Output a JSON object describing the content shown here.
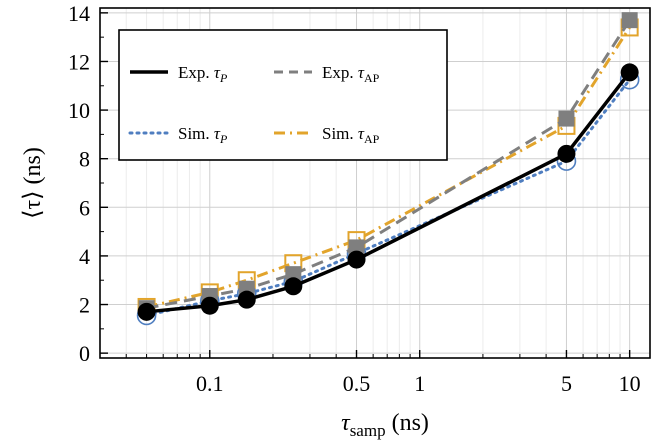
{
  "chart_data": {
    "type": "line",
    "x_scale": "log",
    "xlim": [
      0.03,
      12.5
    ],
    "ylim": [
      -0.2,
      14.2
    ],
    "grid": true,
    "legend_placement": "top-left",
    "x_ticks": [
      {
        "value": 0.1,
        "label": "0.1"
      },
      {
        "value": 0.5,
        "label": "0.5"
      },
      {
        "value": 1,
        "label": "1"
      },
      {
        "value": 5,
        "label": "5"
      },
      {
        "value": 10,
        "label": "10"
      }
    ],
    "y_ticks": [
      {
        "value": 0,
        "label": "0"
      },
      {
        "value": 2,
        "label": "2"
      },
      {
        "value": 4,
        "label": "4"
      },
      {
        "value": 6,
        "label": "6"
      },
      {
        "value": 8,
        "label": "8"
      },
      {
        "value": 10,
        "label": "10"
      },
      {
        "value": 12,
        "label": "12"
      },
      {
        "value": 14,
        "label": "14"
      }
    ],
    "xlabel": {
      "main": "τ",
      "sub": "samp",
      "rest": " (ns)"
    },
    "ylabel": "⟨τ⟩ (ns)",
    "series": [
      {
        "name": "Exp. τP",
        "legend": {
          "prefix": "Exp. ",
          "symbol": "τ",
          "sub": "P"
        },
        "color": "#000000",
        "dash": "solid",
        "marker": "circle-filled",
        "x": [
          0.05,
          0.1,
          0.15,
          0.25,
          0.5,
          5,
          10
        ],
        "y": [
          1.7,
          1.95,
          2.2,
          2.75,
          3.85,
          8.2,
          11.55
        ]
      },
      {
        "name": "Exp. τAP",
        "legend": {
          "prefix": "Exp. ",
          "symbol": "τ",
          "sub": "AP"
        },
        "color": "#7f7f7f",
        "dash": "dashed",
        "marker": "square-filled",
        "x": [
          0.05,
          0.1,
          0.15,
          0.25,
          0.5,
          5,
          10
        ],
        "y": [
          1.85,
          2.35,
          2.65,
          3.25,
          4.35,
          9.65,
          13.7
        ]
      },
      {
        "name": "Sim. τP",
        "legend": {
          "prefix": "Sim. ",
          "symbol": "τ",
          "sub": "P"
        },
        "color": "#4f7ec0",
        "dash": "dotted",
        "marker": "circle-open",
        "x": [
          0.05,
          0.1,
          0.15,
          0.25,
          0.5,
          5,
          10
        ],
        "y": [
          1.55,
          2.15,
          2.45,
          2.95,
          4.1,
          7.9,
          11.25
        ]
      },
      {
        "name": "Sim. τAP",
        "legend": {
          "prefix": "Sim. ",
          "symbol": "τ",
          "sub": "AP"
        },
        "color": "#e2a42b",
        "dash": "dashdot",
        "marker": "square-open",
        "x": [
          0.05,
          0.1,
          0.15,
          0.25,
          0.5,
          5,
          10
        ],
        "y": [
          1.9,
          2.5,
          3.0,
          3.7,
          4.65,
          9.35,
          13.4
        ]
      }
    ]
  }
}
